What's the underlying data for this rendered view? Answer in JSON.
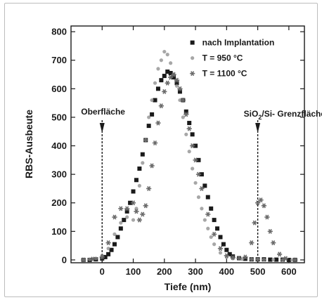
{
  "chart_data": {
    "type": "scatter",
    "xlabel": "Tiefe (nm)",
    "ylabel": "RBS-Ausbeute",
    "xlim": [
      -100,
      650
    ],
    "ylim": [
      -10,
      820
    ],
    "xticks": [
      "0",
      "100",
      "200",
      "300",
      "400",
      "500",
      "600"
    ],
    "yticks": [
      "0",
      "100",
      "200",
      "300",
      "400",
      "500",
      "600",
      "700",
      "800"
    ],
    "grid": false,
    "legend_position": "top-right",
    "annotations": {
      "surface": {
        "text": "Oberfläche",
        "x": 0
      },
      "interface_main": "SiO",
      "interface_sub": "2",
      "interface_rest": "/Si- Grenzfläche",
      "interface_x": 500
    },
    "series": [
      {
        "name": "nach Implantation",
        "marker": "square",
        "color": "#1a1a1a",
        "x": [
          -60,
          -40,
          -20,
          0,
          10,
          20,
          30,
          40,
          50,
          60,
          70,
          80,
          90,
          100,
          110,
          120,
          130,
          140,
          150,
          160,
          170,
          180,
          190,
          200,
          210,
          220,
          230,
          240,
          250,
          260,
          270,
          280,
          290,
          300,
          310,
          320,
          330,
          340,
          350,
          360,
          370,
          380,
          390,
          400,
          410,
          420,
          440,
          460,
          480,
          500,
          520,
          540,
          560,
          580,
          600,
          620
        ],
        "y": [
          0,
          0,
          2,
          5,
          10,
          20,
          35,
          55,
          80,
          110,
          140,
          170,
          200,
          240,
          280,
          320,
          370,
          420,
          470,
          510,
          560,
          600,
          630,
          645,
          660,
          655,
          640,
          620,
          590,
          560,
          520,
          480,
          440,
          400,
          350,
          300,
          260,
          220,
          180,
          140,
          110,
          80,
          55,
          35,
          20,
          12,
          6,
          4,
          2,
          2,
          2,
          1,
          1,
          1,
          0,
          0
        ]
      },
      {
        "name": "T = 950 °C",
        "marker": "dot",
        "color": "#8a8a8a",
        "x": [
          -60,
          -40,
          -20,
          0,
          20,
          40,
          60,
          80,
          100,
          110,
          120,
          130,
          140,
          150,
          160,
          170,
          180,
          190,
          200,
          210,
          220,
          230,
          240,
          250,
          260,
          270,
          280,
          290,
          300,
          310,
          320,
          330,
          340,
          350,
          360,
          380,
          400,
          420,
          450,
          480,
          500,
          520,
          550,
          580,
          610
        ],
        "y": [
          0,
          2,
          5,
          15,
          40,
          90,
          130,
          150,
          140,
          180,
          260,
          340,
          420,
          500,
          560,
          620,
          670,
          700,
          730,
          720,
          690,
          650,
          610,
          560,
          500,
          440,
          380,
          320,
          270,
          220,
          180,
          140,
          110,
          80,
          55,
          25,
          10,
          5,
          3,
          2,
          2,
          1,
          1,
          0,
          0
        ]
      },
      {
        "name": "T = 1100 °C",
        "marker": "star",
        "color": "#6a6a6a",
        "x": [
          -60,
          -30,
          0,
          20,
          40,
          60,
          80,
          100,
          110,
          120,
          130,
          140,
          150,
          160,
          170,
          180,
          190,
          200,
          210,
          220,
          230,
          240,
          250,
          260,
          270,
          280,
          290,
          300,
          310,
          320,
          340,
          360,
          380,
          400,
          420,
          440,
          460,
          480,
          490,
          500,
          510,
          520,
          530,
          540,
          550,
          570,
          590,
          620
        ],
        "y": [
          0,
          3,
          10,
          60,
          150,
          180,
          180,
          200,
          170,
          140,
          160,
          190,
          250,
          330,
          410,
          480,
          540,
          590,
          620,
          640,
          650,
          630,
          600,
          560,
          510,
          460,
          400,
          350,
          300,
          250,
          160,
          90,
          40,
          15,
          8,
          6,
          10,
          60,
          130,
          200,
          210,
          190,
          150,
          100,
          60,
          20,
          5,
          0
        ]
      }
    ]
  }
}
